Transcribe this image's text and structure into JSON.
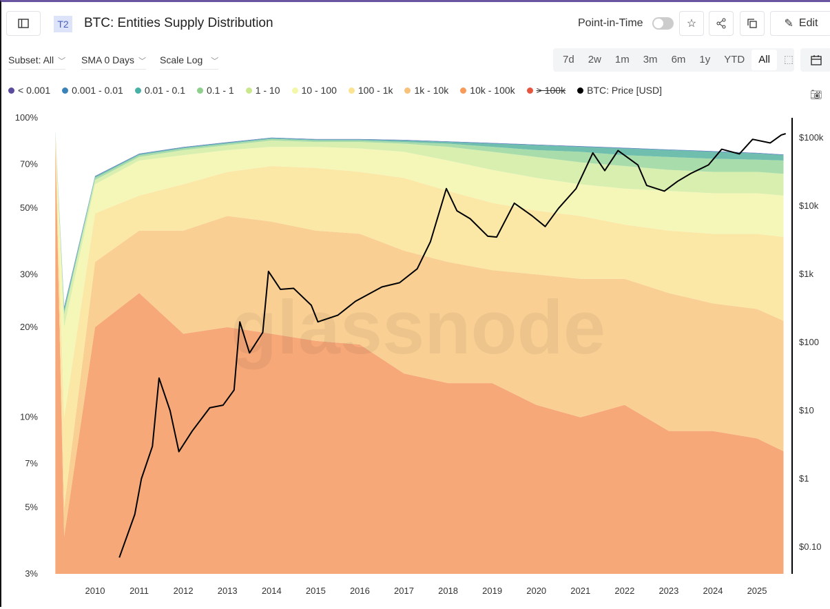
{
  "header": {
    "badge": "T2",
    "title": "BTC: Entities Supply Distribution",
    "pit_label": "Point-in-Time",
    "pit_on": false,
    "edit_label": "Edit"
  },
  "controls": {
    "subset": "Subset: All",
    "sma": "SMA 0 Days",
    "scale": "Scale Log"
  },
  "ranges": [
    {
      "label": "7d"
    },
    {
      "label": "2w"
    },
    {
      "label": "1m"
    },
    {
      "label": "3m"
    },
    {
      "label": "6m"
    },
    {
      "label": "1y"
    },
    {
      "label": "YTD"
    },
    {
      "label": "All",
      "active": true
    }
  ],
  "legend": [
    {
      "label": "< 0.001",
      "color": "#5b4b9d"
    },
    {
      "label": "0.001 - 0.01",
      "color": "#3b82b8"
    },
    {
      "label": "0.01 - 0.1",
      "color": "#48b1a5"
    },
    {
      "label": "0.1 - 1",
      "color": "#8fd08f"
    },
    {
      "label": "1 - 10",
      "color": "#c9e88e"
    },
    {
      "label": "10 - 100",
      "color": "#f4f7a8"
    },
    {
      "label": "100 - 1k",
      "color": "#fbe491"
    },
    {
      "label": "1k - 10k",
      "color": "#f9c27a"
    },
    {
      "label": "10k - 100k",
      "color": "#f79a5a"
    },
    {
      "label": "> 100k",
      "color": "#e5553f",
      "hidden": true
    },
    {
      "label": "BTC: Price [USD]",
      "color": "#000000"
    }
  ],
  "watermark": "glassnode",
  "chart_data": {
    "type": "area",
    "stacked": true,
    "x": [
      2009.1,
      2009.3,
      2010,
      2011,
      2012,
      2013,
      2014,
      2015,
      2016,
      2017,
      2018,
      2019,
      2020,
      2021,
      2022,
      2023,
      2024,
      2025,
      2025.6
    ],
    "series": [
      {
        "name": "10k - 100k",
        "color": "#f6a878",
        "values": [
          85,
          4,
          20,
          26,
          19,
          20,
          19,
          18,
          17.5,
          14,
          13,
          13,
          11,
          10,
          11,
          9,
          9,
          8.5,
          7.7
        ]
      },
      {
        "name": "1k - 10k",
        "color": "#f9cf94",
        "values": [
          1,
          1,
          13,
          16,
          23,
          27,
          26,
          24,
          23.5,
          22,
          20,
          18,
          19,
          19,
          18,
          17,
          15,
          14.5,
          13.3
        ]
      },
      {
        "name": "100 - 1k",
        "color": "#fbe8a6",
        "values": [
          1,
          5,
          15,
          13,
          18,
          19,
          24,
          26,
          25,
          27,
          24,
          21,
          19,
          18,
          15,
          16,
          17,
          18,
          19
        ]
      },
      {
        "name": "10 - 100",
        "color": "#f5f7b9",
        "values": [
          1,
          10,
          12,
          17,
          15,
          12,
          11,
          12,
          13,
          14,
          15,
          15,
          14,
          13,
          14,
          15,
          15,
          15,
          15
        ]
      },
      {
        "name": "1 - 10",
        "color": "#d8efb0",
        "values": [
          0.5,
          2,
          2,
          2,
          3,
          3,
          4,
          3,
          4,
          5,
          8,
          10,
          11,
          11,
          11,
          10,
          10,
          10,
          10
        ]
      },
      {
        "name": "0.1 - 1",
        "color": "#a9dcab",
        "values": [
          0.5,
          0.5,
          1,
          1,
          1,
          1,
          1,
          1,
          1,
          1,
          2,
          3,
          4,
          6,
          6,
          7,
          7,
          6.5,
          7
        ]
      },
      {
        "name": "0.01 - 0.1",
        "color": "#70bfae",
        "values": [
          0.5,
          0.5,
          0.5,
          0.5,
          0.5,
          0.5,
          0.5,
          0.5,
          0.5,
          1,
          1,
          2,
          3,
          3,
          4,
          4,
          4,
          3.5,
          3
        ]
      },
      {
        "name": "0.001 - 0.01",
        "color": "#4a90bd",
        "values": [
          0.3,
          0.3,
          0.3,
          0.3,
          0.3,
          0.3,
          0.3,
          0.3,
          0.3,
          0.3,
          0.3,
          0.3,
          0.3,
          0.3,
          0.3,
          0.3,
          0.3,
          0.3,
          0.3
        ]
      },
      {
        "name": "< 0.001",
        "color": "#5b4b9d",
        "values": [
          0.1,
          0.1,
          0.1,
          0.1,
          0.1,
          0.1,
          0.1,
          0.1,
          0.1,
          0.1,
          0.1,
          0.1,
          0.1,
          0.1,
          0.1,
          0.1,
          0.1,
          0.1,
          0.1
        ]
      }
    ],
    "price": {
      "name": "BTC: Price [USD]",
      "points": [
        [
          2010.55,
          0.07
        ],
        [
          2010.9,
          0.3
        ],
        [
          2011.05,
          1
        ],
        [
          2011.3,
          3
        ],
        [
          2011.45,
          30
        ],
        [
          2011.7,
          10
        ],
        [
          2011.9,
          2.5
        ],
        [
          2012.2,
          5
        ],
        [
          2012.6,
          11
        ],
        [
          2012.9,
          12
        ],
        [
          2013.15,
          20
        ],
        [
          2013.28,
          200
        ],
        [
          2013.5,
          70
        ],
        [
          2013.8,
          140
        ],
        [
          2013.93,
          1100
        ],
        [
          2014.2,
          600
        ],
        [
          2014.5,
          620
        ],
        [
          2014.9,
          350
        ],
        [
          2015.05,
          200
        ],
        [
          2015.5,
          250
        ],
        [
          2015.9,
          400
        ],
        [
          2016.5,
          650
        ],
        [
          2016.9,
          750
        ],
        [
          2017.3,
          1200
        ],
        [
          2017.6,
          3000
        ],
        [
          2017.96,
          18000
        ],
        [
          2018.2,
          8500
        ],
        [
          2018.5,
          6500
        ],
        [
          2018.9,
          3600
        ],
        [
          2019.1,
          3500
        ],
        [
          2019.5,
          11000
        ],
        [
          2019.9,
          7200
        ],
        [
          2020.2,
          5000
        ],
        [
          2020.5,
          9200
        ],
        [
          2020.9,
          18000
        ],
        [
          2021.28,
          60000
        ],
        [
          2021.55,
          33000
        ],
        [
          2021.85,
          65000
        ],
        [
          2022.3,
          40000
        ],
        [
          2022.5,
          20000
        ],
        [
          2022.9,
          16500
        ],
        [
          2023.2,
          23000
        ],
        [
          2023.5,
          30000
        ],
        [
          2023.9,
          40000
        ],
        [
          2024.2,
          68000
        ],
        [
          2024.6,
          58000
        ],
        [
          2024.9,
          95000
        ],
        [
          2025.3,
          84000
        ],
        [
          2025.55,
          110000
        ],
        [
          2025.65,
          115000
        ]
      ]
    },
    "y_left": {
      "scale": "log",
      "range": [
        3,
        100
      ],
      "ticks": [
        "100%",
        "70%",
        "50%",
        "30%",
        "20%",
        "10%",
        "7%",
        "5%",
        "3%"
      ],
      "tick_values": [
        100,
        70,
        50,
        30,
        20,
        10,
        7,
        5,
        3
      ]
    },
    "y_right": {
      "scale": "log",
      "ticks": [
        "$100k",
        "$10k",
        "$1k",
        "$100",
        "$10",
        "$1",
        "$0.10"
      ],
      "tick_values": [
        100000,
        10000,
        1000,
        100,
        10,
        1,
        0.1
      ]
    },
    "x_axis": {
      "ticks": [
        "2010",
        "2011",
        "2012",
        "2013",
        "2014",
        "2015",
        "2016",
        "2017",
        "2018",
        "2019",
        "2020",
        "2021",
        "2022",
        "2023",
        "2024",
        "2025"
      ],
      "range": [
        2009,
        2025.7
      ]
    }
  }
}
